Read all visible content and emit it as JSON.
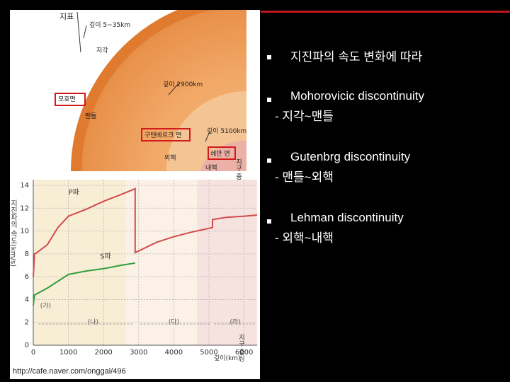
{
  "figure": {
    "labels": {
      "surface": "지표",
      "depth_crust": "깊이 5~35km",
      "crust": "지각",
      "depth_mantle": "깊이 2900km",
      "moho": "모호면",
      "mantle": "맨틀",
      "gutenberg": "구텐베르크 면",
      "depth_outer": "깊이 5100km",
      "outer_core": "외핵",
      "lehman": "레만 면",
      "inner_core": "내핵",
      "center": "지구 중심"
    },
    "credit": "http://cafe.naver.com/onggal/496"
  },
  "chart_data": {
    "type": "line",
    "ylabel": "지진파의 속도(km/s)",
    "xlabel": "깊이(km)",
    "x_center_label": "지구 중심",
    "ylim": [
      0,
      14
    ],
    "xlim": [
      0,
      6371
    ],
    "y_ticks": [
      "0",
      "2",
      "4",
      "6",
      "8",
      "10",
      "12",
      "14"
    ],
    "x_ticks": [
      "0",
      "1000",
      "2000",
      "3000",
      "4000",
      "5000",
      "6000"
    ],
    "regions": [
      "(가)",
      "(나)",
      "(다)",
      "(라)"
    ],
    "series": [
      {
        "name": "P파",
        "x": [
          0,
          35,
          100,
          400,
          700,
          1000,
          1500,
          2000,
          2500,
          2900,
          2900,
          3500,
          4000,
          4500,
          5100,
          5100,
          5500,
          6000,
          6371
        ],
        "y": [
          6.0,
          8.0,
          8.1,
          8.8,
          10.3,
          11.3,
          11.9,
          12.6,
          13.2,
          13.7,
          8.1,
          9.0,
          9.5,
          9.9,
          10.3,
          11.0,
          11.2,
          11.3,
          11.4
        ]
      },
      {
        "name": "S파",
        "x": [
          0,
          35,
          100,
          400,
          700,
          1000,
          1500,
          2000,
          2500,
          2900
        ],
        "y": [
          3.5,
          4.4,
          4.5,
          5.0,
          5.6,
          6.2,
          6.5,
          6.7,
          7.0,
          7.2
        ]
      }
    ]
  },
  "bullets": [
    {
      "text": "지진파의 속도 변화에 따라",
      "sub": ""
    },
    {
      "text": "Mohorovicic discontinuity",
      "sub": "- 지각~맨틀"
    },
    {
      "text": "Gutenbrg discontinuity",
      "sub": "- 맨틀~외핵"
    },
    {
      "text": "Lehman discontinuity",
      "sub": "- 외핵~내핵"
    }
  ]
}
